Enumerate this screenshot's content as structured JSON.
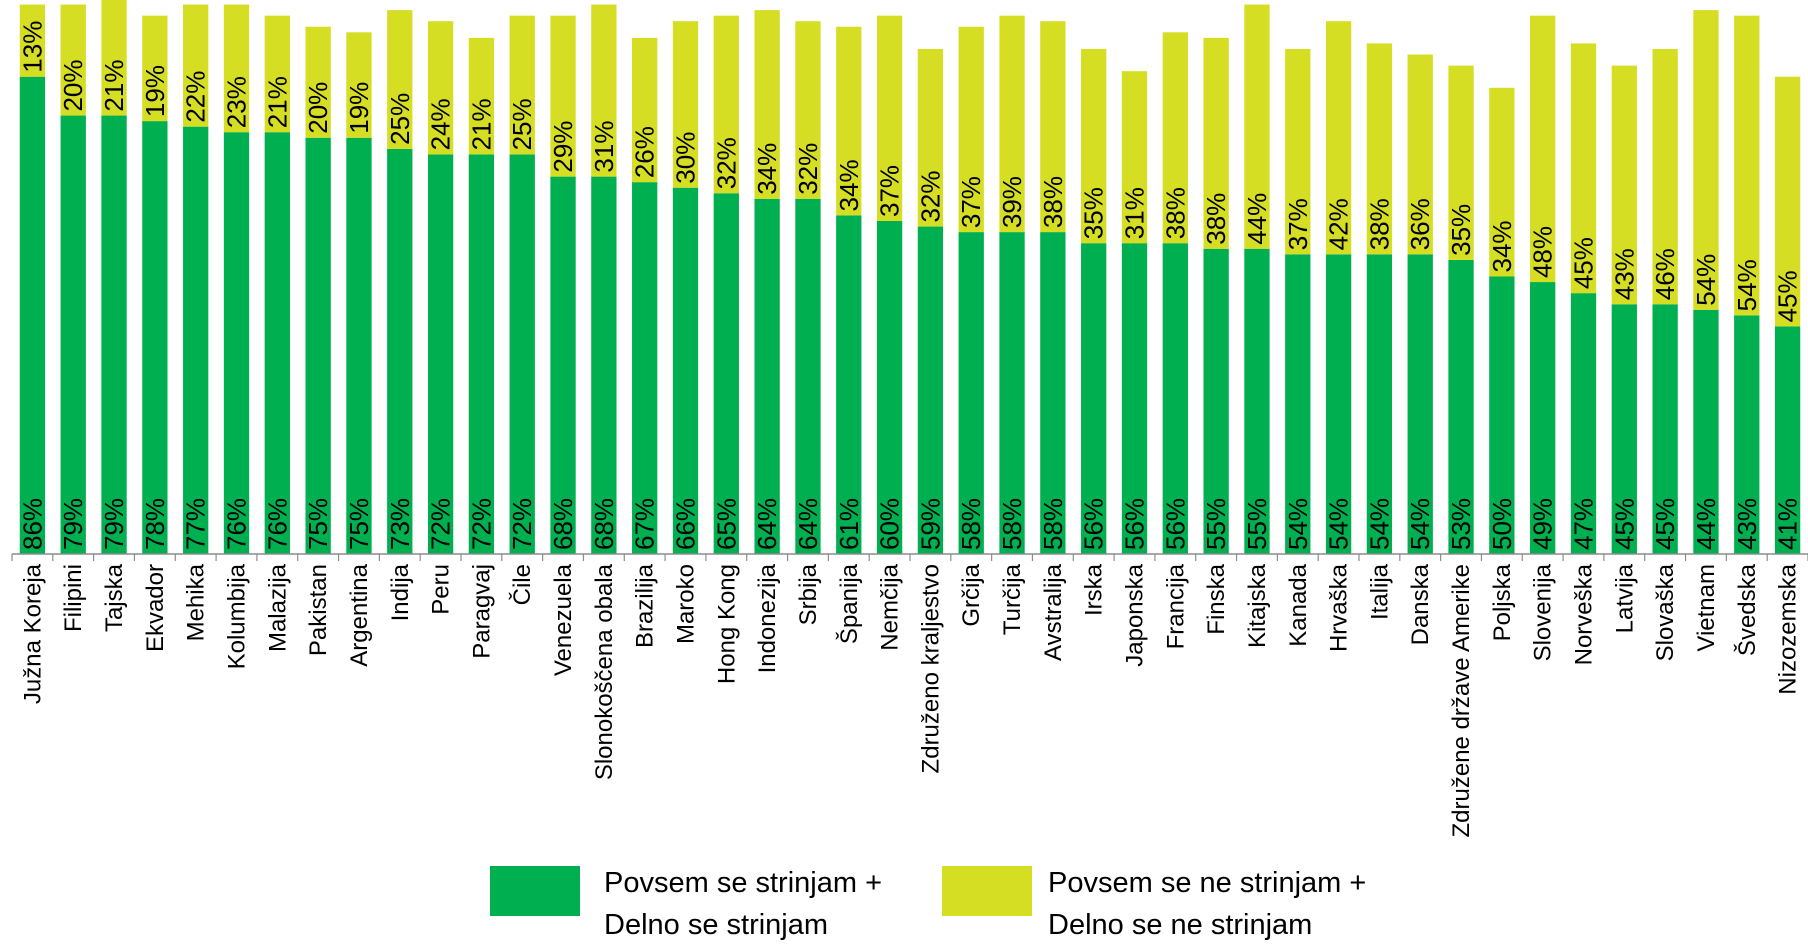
{
  "colors": {
    "agree": "#00B050",
    "disagree": "#D6DE24"
  },
  "legend": {
    "agree_line1": "Povsem se strinjam +",
    "agree_line2": "Delno se strinjam",
    "disagree_line1": "Povsem se ne strinjam +",
    "disagree_line2": "Delno se ne strinjam"
  },
  "chart_data": {
    "type": "bar",
    "stacked": true,
    "orientation": "vertical",
    "categories": [
      "Južna Koreja",
      "Filipini",
      "Tajska",
      "Ekvador",
      "Mehika",
      "Kolumbija",
      "Malazija",
      "Pakistan",
      "Argentina",
      "Indija",
      "Peru",
      "Paragvaj",
      "Čile",
      "Venezuela",
      "Slonokoščena obala",
      "Brazilija",
      "Maroko",
      "Hong Kong",
      "Indonezija",
      "Srbija",
      "Španija",
      "Nemčija",
      "Združeno kraljestvo",
      "Grčija",
      "Turčija",
      "Avstralija",
      "Irska",
      "Japonska",
      "Francija",
      "Finska",
      "Kitajska",
      "Kanada",
      "Hrvaška",
      "Italija",
      "Danska",
      "Združene države Amerike",
      "Poljska",
      "Slovenija",
      "Norveška",
      "Latvija",
      "Slovaška",
      "Vietnam",
      "Švedska",
      "Nizozemska"
    ],
    "series": [
      {
        "name": "Povsem se strinjam + Delno se strinjam",
        "color": "#00B050",
        "values": [
          86,
          79,
          79,
          78,
          77,
          76,
          76,
          75,
          75,
          73,
          72,
          72,
          72,
          68,
          68,
          67,
          66,
          65,
          64,
          64,
          61,
          60,
          59,
          58,
          58,
          58,
          56,
          56,
          56,
          55,
          55,
          54,
          54,
          54,
          54,
          53,
          50,
          49,
          47,
          45,
          45,
          44,
          43,
          41
        ],
        "labels": [
          "86%",
          "79%",
          "79%",
          "78%",
          "77%",
          "76%",
          "76%",
          "75%",
          "75%",
          "73%",
          "72%",
          "72%",
          "72%",
          "68%",
          "68%",
          "67%",
          "66%",
          "65%",
          "64%",
          "64%",
          "61%",
          "60%",
          "59%",
          "58%",
          "58%",
          "58%",
          "56%",
          "56%",
          "56%",
          "55%",
          "55%",
          "54%",
          "54%",
          "54%",
          "54%",
          "53%",
          "50%",
          "49%",
          "47%",
          "45%",
          "45%",
          "44%",
          "43%",
          "41%"
        ]
      },
      {
        "name": "Povsem se ne strinjam + Delno se ne strinjam",
        "color": "#D6DE24",
        "values": [
          13,
          20,
          21,
          19,
          22,
          23,
          21,
          20,
          19,
          25,
          24,
          21,
          25,
          29,
          31,
          26,
          30,
          32,
          34,
          32,
          34,
          37,
          32,
          37,
          39,
          38,
          35,
          31,
          38,
          38,
          44,
          37,
          42,
          38,
          36,
          35,
          34,
          48,
          45,
          43,
          46,
          54,
          54,
          45
        ],
        "labels": [
          "13%",
          "20%",
          "21%",
          "19%",
          "22%",
          "23%",
          "21%",
          "20%",
          "19%",
          "25%",
          "24%",
          "21%",
          "25%",
          "29%",
          "31%",
          "26%",
          "30%",
          "32%",
          "34%",
          "32%",
          "34%",
          "37%",
          "32%",
          "37%",
          "39%",
          "38%",
          "35%",
          "31%",
          "38%",
          "38%",
          "44%",
          "37%",
          "42%",
          "38%",
          "36%",
          "35%",
          "34%",
          "48%",
          "45%",
          "43%",
          "46%",
          "54%",
          "54%",
          "45%"
        ]
      }
    ],
    "ylim": [
      0,
      100
    ],
    "grid": false,
    "legend_position": "bottom"
  }
}
